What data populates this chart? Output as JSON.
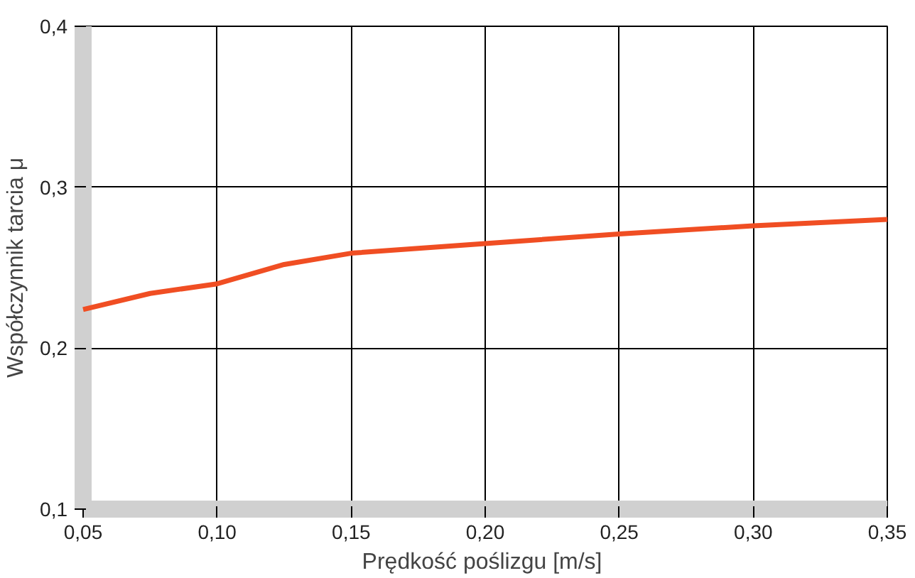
{
  "chart_data": {
    "type": "line",
    "xlabel": "Prędkość poślizgu  [m/s]",
    "ylabel": "Współczynnik tarcia μ",
    "x": [
      0.05,
      0.075,
      0.1,
      0.125,
      0.15,
      0.2,
      0.25,
      0.3,
      0.35
    ],
    "series": [
      {
        "color": "#f04e23",
        "values": [
          0.224,
          0.234,
          0.24,
          0.252,
          0.259,
          0.265,
          0.271,
          0.276,
          0.28
        ]
      }
    ],
    "xlim": [
      0.05,
      0.35
    ],
    "ylim": [
      0.1,
      0.4
    ],
    "xticks": [
      {
        "value": 0.05,
        "label": "0,05"
      },
      {
        "value": 0.1,
        "label": "0,10"
      },
      {
        "value": 0.15,
        "label": "0,15"
      },
      {
        "value": 0.2,
        "label": "0,20"
      },
      {
        "value": 0.25,
        "label": "0,25"
      },
      {
        "value": 0.3,
        "label": "0,30"
      },
      {
        "value": 0.35,
        "label": "0,35"
      }
    ],
    "yticks": [
      {
        "value": 0.1,
        "label": "0,1"
      },
      {
        "value": 0.2,
        "label": "0,2"
      },
      {
        "value": 0.3,
        "label": "0,3"
      },
      {
        "value": 0.4,
        "label": "0,4"
      }
    ],
    "grid": true,
    "marker": "none",
    "line_style": "solid"
  }
}
